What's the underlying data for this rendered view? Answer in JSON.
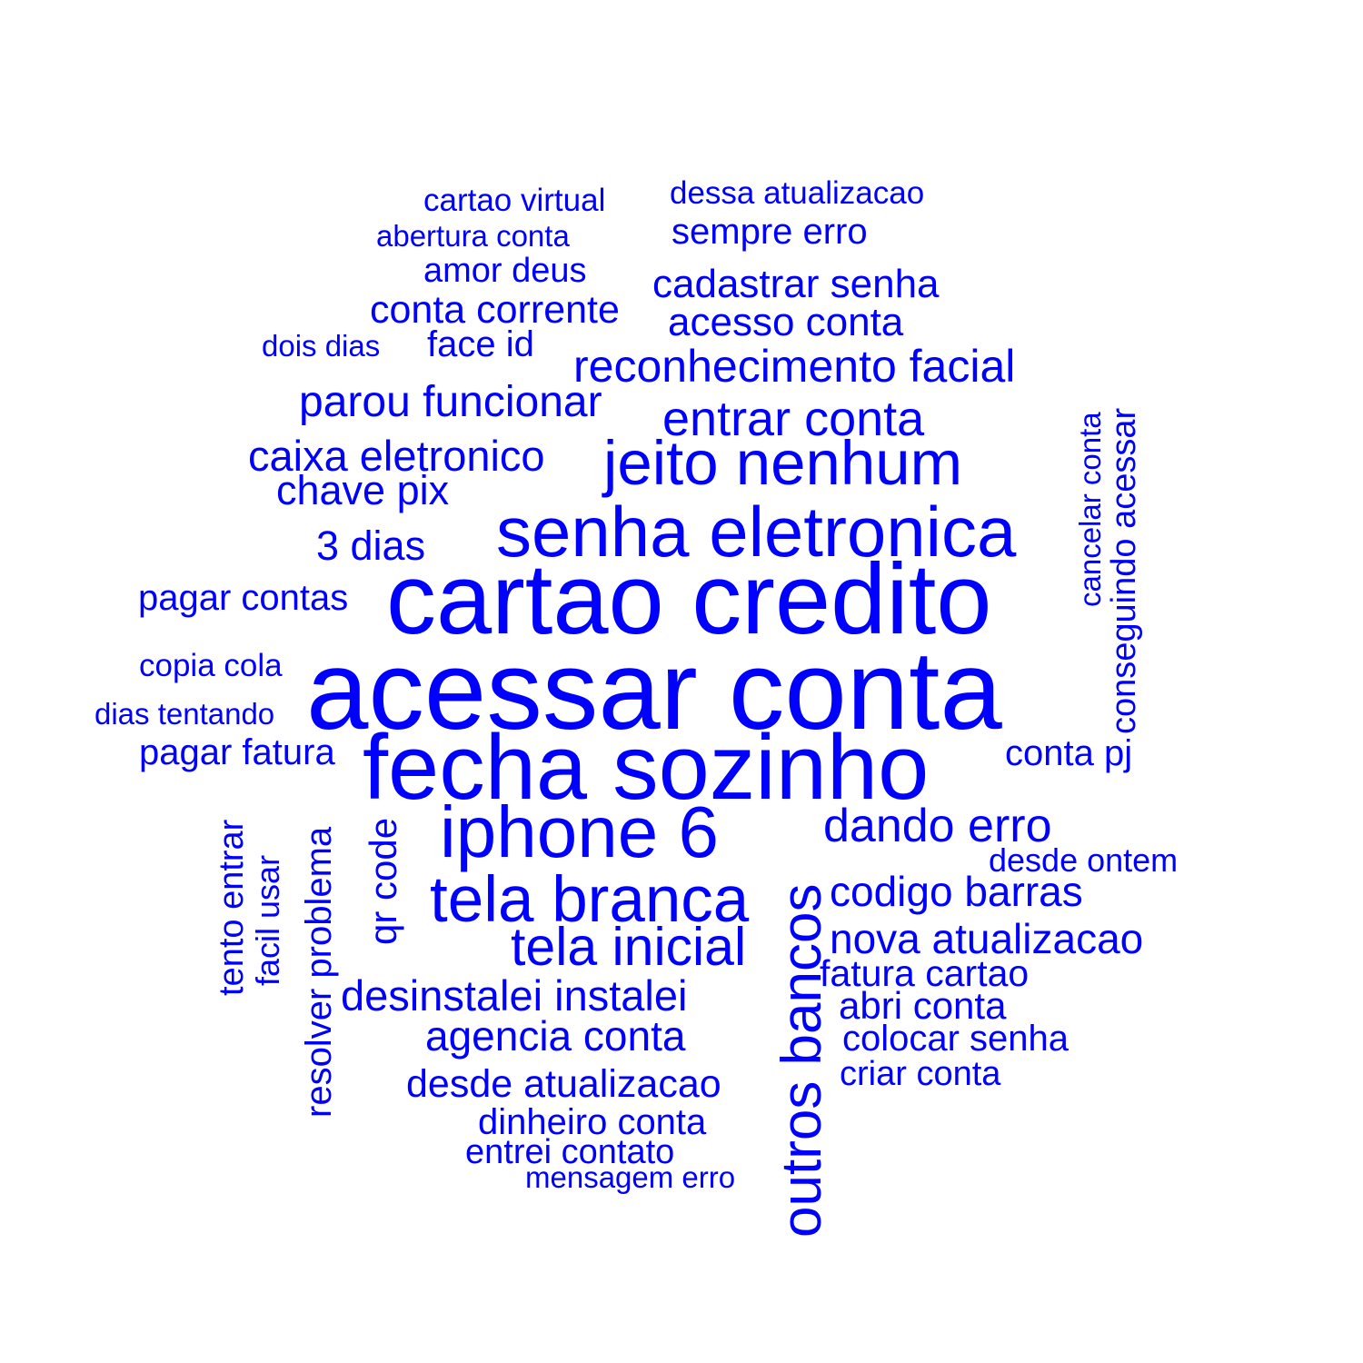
{
  "accent_color": "#0000ff",
  "words": {
    "cartao_virtual": "cartao virtual",
    "dessa_atualizacao": "dessa atualizacao",
    "abertura_conta": "abertura conta",
    "sempre_erro": "sempre erro",
    "amor_deus": "amor deus",
    "cadastrar_senha": "cadastrar senha",
    "conta_corrente": "conta corrente",
    "acesso_conta": "acesso conta",
    "dois_dias": "dois dias",
    "face_id": "face id",
    "reconhecimento_facial": "reconhecimento facial",
    "parou_funcionar": "parou funcionar",
    "entrar_conta": "entrar conta",
    "caixa_eletronico": "caixa eletronico",
    "jeito_nenhum": "jeito nenhum",
    "chave_pix": "chave pix",
    "senha_eletronica": "senha eletronica",
    "tres_dias": "3 dias",
    "pagar_contas": "pagar contas",
    "cartao_credito": "cartao credito",
    "copia_cola": "copia cola",
    "acessar_conta": "acessar conta",
    "dias_tentando": "dias tentando",
    "pagar_fatura": "pagar fatura",
    "fecha_sozinho": "fecha sozinho",
    "conta_pj": "conta pj",
    "cancelar_conta": "cancelar conta",
    "conseguindo_acessar": "conseguindo acessar",
    "tento_entrar": "tento entrar",
    "facil_usar": "facil usar",
    "resolver_problema": "resolver problema",
    "qr_code": "qr code",
    "iphone_6": "iphone 6",
    "outros_bancos": "outros bancos",
    "dando_erro": "dando erro",
    "desde_ontem": "desde ontem",
    "tela_branca": "tela branca",
    "codigo_barras": "codigo barras",
    "tela_inicial": "tela inicial",
    "nova_atualizacao": "nova atualizacao",
    "fatura_cartao": "fatura cartao",
    "desinstalei_instalei": "desinstalei instalei",
    "abri_conta": "abri conta",
    "agencia_conta": "agencia conta",
    "colocar_senha": "colocar senha",
    "criar_conta": "criar conta",
    "desde_atualizacao": "desde atualizacao",
    "dinheiro_conta": "dinheiro conta",
    "entrei_contato": "entrei contato",
    "mensagem_erro": "mensagem erro"
  }
}
